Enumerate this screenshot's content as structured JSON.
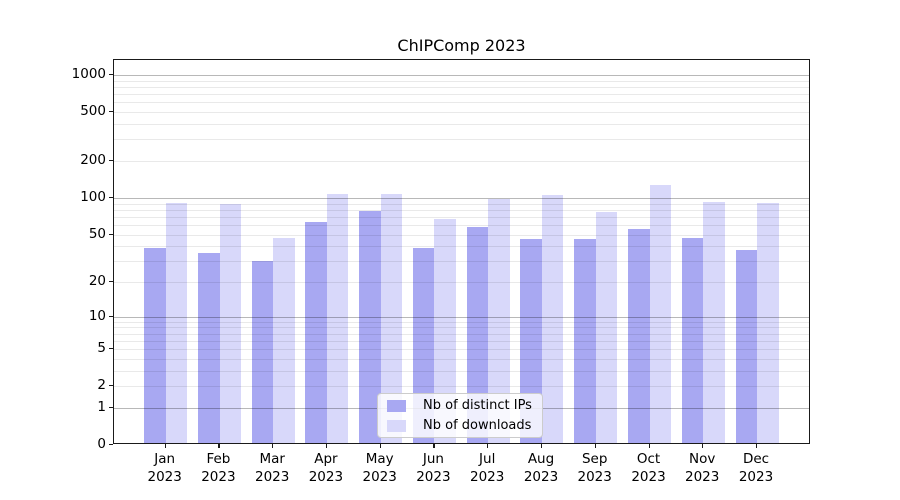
{
  "chart_data": {
    "type": "bar",
    "title": "ChIPComp 2023",
    "categories": [
      "Jan",
      "Feb",
      "Mar",
      "Apr",
      "May",
      "Jun",
      "Jul",
      "Aug",
      "Sep",
      "Oct",
      "Nov",
      "Dec"
    ],
    "x_tick_year": "2023",
    "series": [
      {
        "name": "Nb of distinct IPs",
        "color": "#a8a8f2",
        "values": [
          37,
          34,
          29,
          61,
          75,
          37,
          56,
          44,
          44,
          53,
          45,
          36
        ]
      },
      {
        "name": "Nb of downloads",
        "color": "#d8d8fa",
        "values": [
          87,
          86,
          45,
          103,
          103,
          65,
          95,
          101,
          74,
          122,
          90,
          87
        ]
      }
    ],
    "yscale": "log1p",
    "y_ticks": [
      0,
      1,
      2,
      5,
      10,
      20,
      50,
      100,
      200,
      500,
      1000
    ],
    "y_major_gridlines": [
      1,
      10,
      100,
      1000
    ],
    "ylim": [
      0,
      1300
    ],
    "grid": "horizontal",
    "legend_position": "bottom-center",
    "xlabel": "",
    "ylabel": ""
  }
}
